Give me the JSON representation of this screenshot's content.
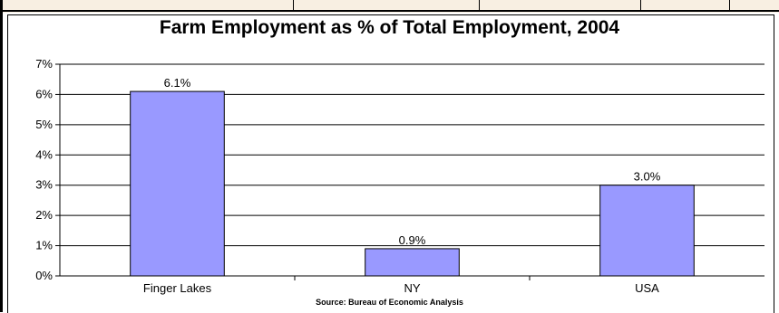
{
  "chart_data": {
    "type": "bar",
    "title": "Farm Employment as % of Total Employment, 2004",
    "categories": [
      "Finger Lakes",
      "NY",
      "USA"
    ],
    "values": [
      6.1,
      0.9,
      3.0
    ],
    "data_labels": [
      "6.1%",
      "0.9%",
      "3.0%"
    ],
    "y_ticks": [
      "0%",
      "1%",
      "2%",
      "3%",
      "4%",
      "5%",
      "6%",
      "7%"
    ],
    "ylim": [
      0,
      7
    ],
    "xlabel": "",
    "ylabel": "",
    "grid": true,
    "legend": "none",
    "bar_color": "#9999ff",
    "source": "Source: Bureau of Economic Analysis"
  }
}
